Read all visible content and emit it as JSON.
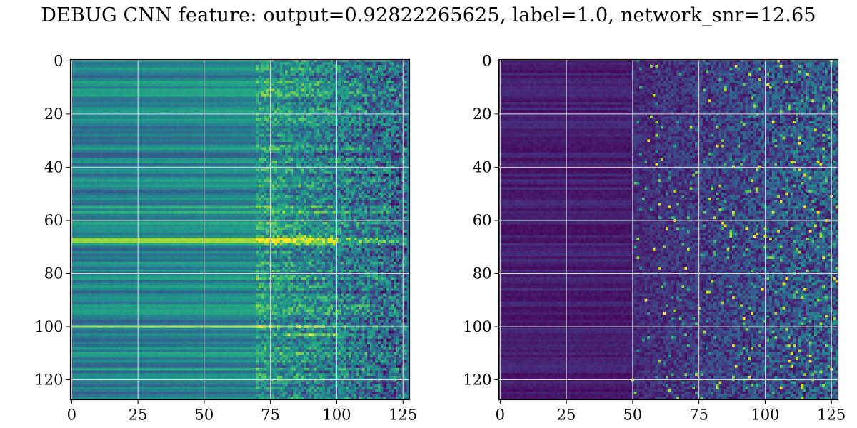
{
  "figure": {
    "title": "DEBUG CNN feature: output=0.92822265625, label=1.0, network_snr=12.65"
  },
  "chart_data": [
    {
      "type": "heatmap",
      "title": "",
      "xlabel": "",
      "ylabel": "",
      "rows": 128,
      "cols": 128,
      "xlim": [
        0,
        127
      ],
      "ylim": [
        127,
        0
      ],
      "x_ticks": [
        "0",
        "25",
        "50",
        "75",
        "100",
        "125"
      ],
      "y_ticks": [
        "0",
        "20",
        "40",
        "60",
        "80",
        "100",
        "120"
      ],
      "grid": true,
      "colormap": "viridis",
      "pattern": "horizontal row bands for columns 0-75, noisy speckle for columns 75-127, brighter rows near 60-70 and 103"
    },
    {
      "type": "heatmap",
      "title": "",
      "xlabel": "",
      "ylabel": "",
      "rows": 128,
      "cols": 128,
      "xlim": [
        0,
        127
      ],
      "ylim": [
        127,
        0
      ],
      "x_ticks": [
        "0",
        "25",
        "50",
        "75",
        "100",
        "125"
      ],
      "y_ticks": [
        "0",
        "20",
        "40",
        "60",
        "80",
        "100",
        "120"
      ],
      "grid": true,
      "colormap": "viridis",
      "pattern": "dark purple background for columns 0-50, sparse bright speckle increasing for columns 50-127"
    }
  ]
}
